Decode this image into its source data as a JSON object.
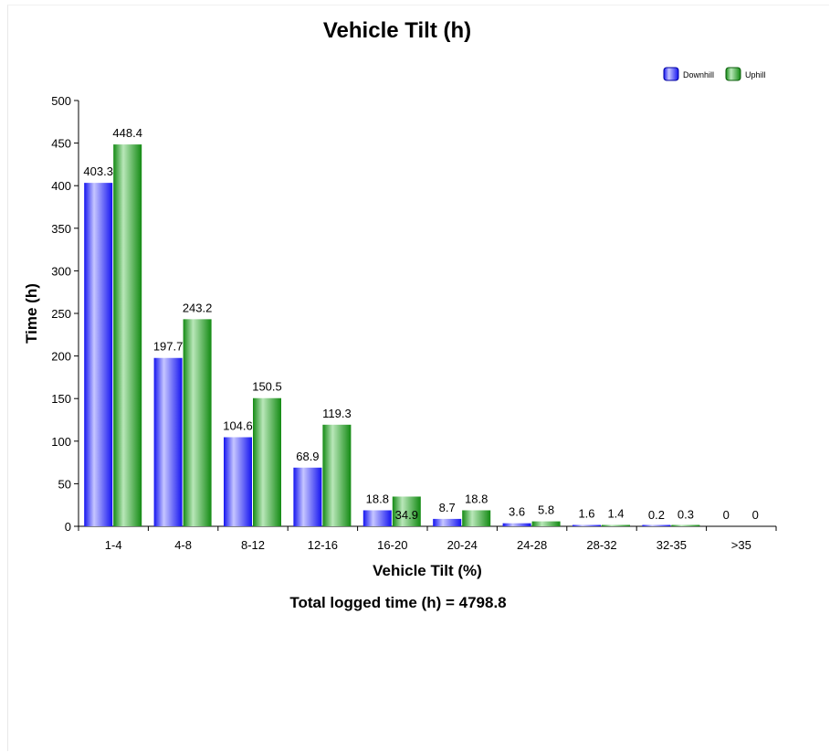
{
  "chart_data": {
    "type": "bar",
    "title": "Vehicle Tilt (h)",
    "xlabel": "Vehicle Tilt (%)",
    "ylabel": "Time (h)",
    "footer": "Total logged time (h) = 4798.8",
    "categories": [
      "1-4",
      "4-8",
      "8-12",
      "12-16",
      "16-20",
      "20-24",
      "24-28",
      "28-32",
      "32-35",
      ">35"
    ],
    "series": [
      {
        "name": "Downhill",
        "values": [
          403.3,
          197.7,
          104.6,
          68.9,
          18.8,
          8.7,
          3.6,
          1.6,
          0.2,
          0
        ],
        "labels": [
          "403.3",
          "197.7",
          "104.6",
          "68.9",
          "18.8",
          "8.7",
          "3.6",
          "1.6",
          "0.2",
          "0"
        ],
        "color": "#1414f0",
        "highlight": "#c6c6ff"
      },
      {
        "name": "Uphill",
        "values": [
          448.4,
          243.2,
          150.5,
          119.3,
          34.9,
          18.8,
          5.8,
          1.4,
          0.3,
          0
        ],
        "labels": [
          "448.4",
          "243.2",
          "150.5",
          "119.3",
          "34.9",
          "18.8",
          "5.8",
          "1.4",
          "0.3",
          "0"
        ],
        "color": "#138a13",
        "highlight": "#b9e7b9"
      }
    ],
    "ylim": [
      0,
      500
    ],
    "yticks": [
      0,
      50,
      100,
      150,
      200,
      250,
      300,
      350,
      400,
      450,
      500
    ],
    "legend_position": "top-right",
    "grid": false
  }
}
